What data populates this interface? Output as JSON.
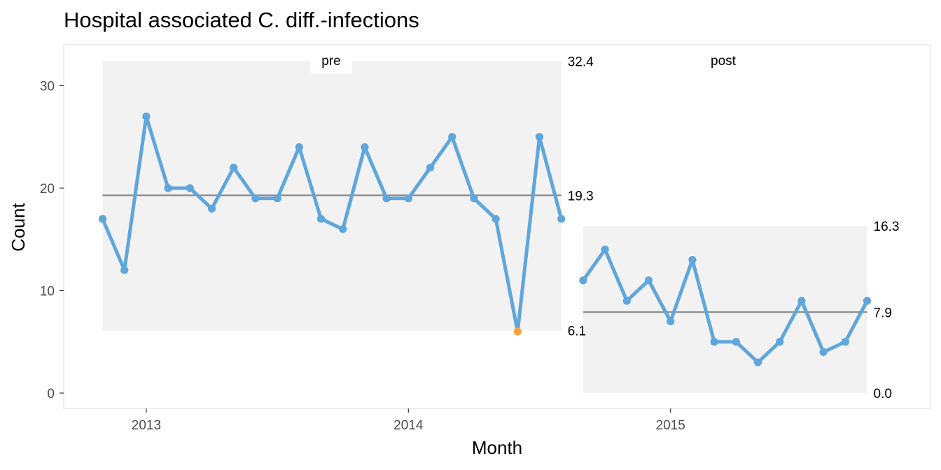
{
  "chart_data": {
    "type": "line",
    "title": "Hospital associated C. diff.-infections",
    "xlabel": "Month",
    "ylabel": "Count",
    "ylim": [
      0,
      32.4
    ],
    "y_ticks": [
      "0",
      "10",
      "20",
      "30"
    ],
    "x_ticks": [
      "2013",
      "2014",
      "2015"
    ],
    "grid": false,
    "parts": [
      {
        "name": "pre",
        "x": [
          "2012-11",
          "2012-12",
          "2013-01",
          "2013-02",
          "2013-03",
          "2013-04",
          "2013-05",
          "2013-06",
          "2013-07",
          "2013-08",
          "2013-09",
          "2013-10",
          "2013-11",
          "2013-12",
          "2014-01",
          "2014-02",
          "2014-03",
          "2014-04",
          "2014-05",
          "2014-06",
          "2014-07",
          "2014-08"
        ],
        "values": [
          17,
          12,
          27,
          20,
          20,
          18,
          22,
          19,
          19,
          24,
          17,
          16,
          24,
          19,
          19,
          22,
          25,
          19,
          17,
          6,
          25,
          17
        ],
        "center": 19.3,
        "lcl": 6.1,
        "ucl": 32.4,
        "center_label": "19.3",
        "lcl_label": "6.1",
        "ucl_label": "32.4"
      },
      {
        "name": "post",
        "x": [
          "2014-09",
          "2014-10",
          "2014-11",
          "2014-12",
          "2015-01",
          "2015-02",
          "2015-03",
          "2015-04",
          "2015-05",
          "2015-06",
          "2015-07",
          "2015-08",
          "2015-09",
          "2015-10"
        ],
        "values": [
          11,
          14,
          9,
          11,
          7,
          13,
          5,
          5,
          3,
          5,
          9,
          4,
          5,
          9
        ],
        "center": 7.9,
        "lcl": 0.0,
        "ucl": 16.3,
        "center_label": "7.9",
        "lcl_label": "0.0",
        "ucl_label": "16.3"
      }
    ],
    "colors": {
      "line": "#5ea6dc",
      "signal_point": "#f7a23a",
      "centerline": "#8c8c8c",
      "limits_band": "#f2f2f2",
      "panel_border": "#e3e3e3"
    }
  }
}
